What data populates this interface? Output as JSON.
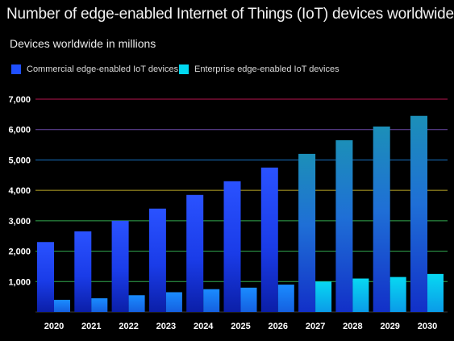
{
  "chart_data": {
    "type": "bar",
    "title": "Number of edge-enabled Internet of Things (IoT) devices worldwide",
    "subtitle": "Devices worldwide in millions",
    "categories": [
      "2020",
      "2021",
      "2022",
      "2023",
      "2024",
      "2025",
      "2026",
      "2027",
      "2028",
      "2029",
      "2030"
    ],
    "series": [
      {
        "name": "Commercial edge-enabled IoT devices",
        "values": [
          2300,
          2650,
          3000,
          3400,
          3850,
          4300,
          4750,
          5200,
          5650,
          6100,
          6450
        ],
        "color": "#1f4fff"
      },
      {
        "name": "Enterprise edge-enabled IoT devices",
        "values": [
          400,
          450,
          550,
          650,
          750,
          800,
          900,
          1000,
          1100,
          1150,
          1250
        ],
        "color": "#00d8f0"
      }
    ],
    "ylim": [
      0,
      7000
    ],
    "yticks": [
      "7,000",
      "6,000",
      "5,000",
      "4,000",
      "3,000",
      "2,000",
      "1,000"
    ],
    "ytick_values": [
      7000,
      6000,
      5000,
      4000,
      3000,
      2000,
      1000
    ],
    "grid_colors": [
      "#d81b60",
      "#7e57c2",
      "#1e88e5",
      "#e0c830",
      "#3cc860",
      "#3cc860",
      "#3cc860"
    ],
    "legend_position": "top-left",
    "grid": true
  }
}
